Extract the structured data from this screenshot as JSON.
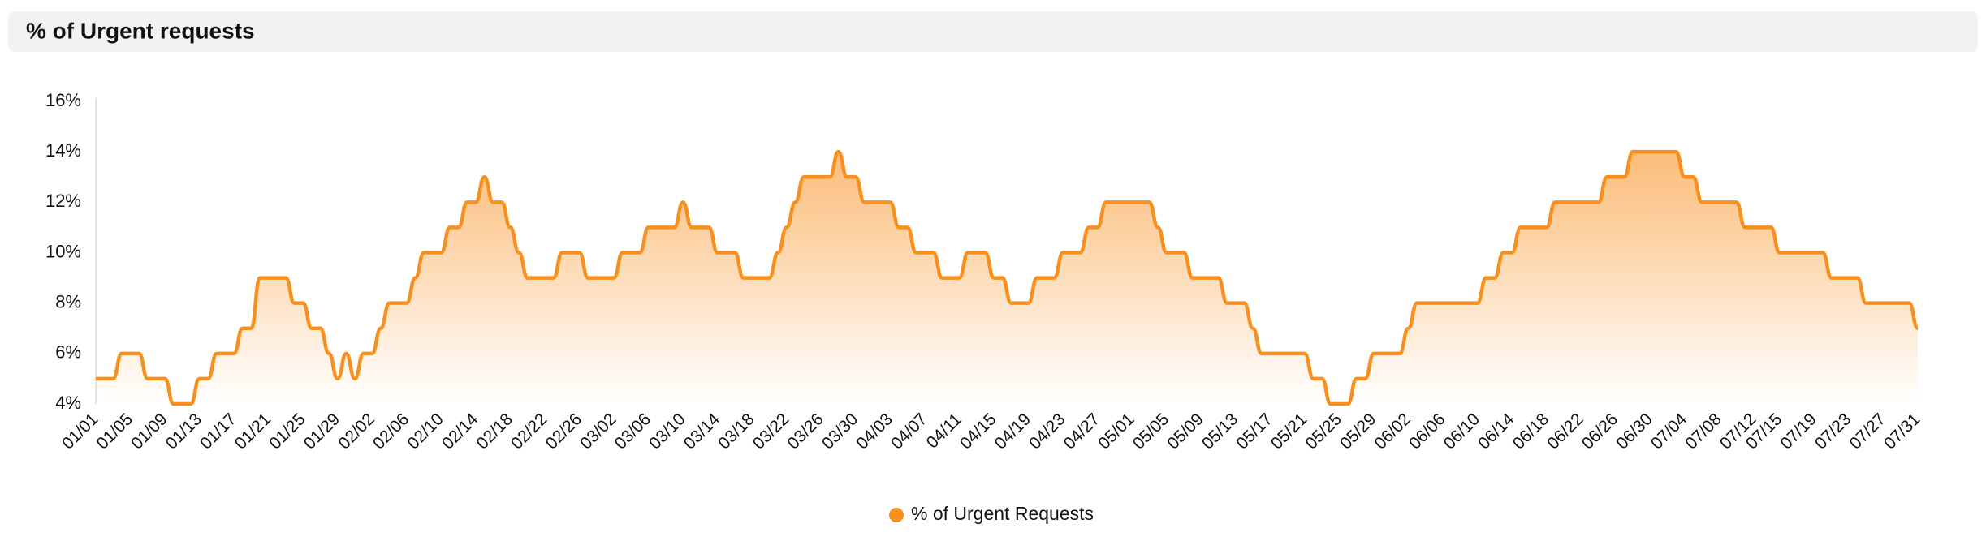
{
  "chart_data": {
    "type": "line",
    "title": "% of Urgent requests",
    "categories": [
      "01/01",
      null,
      null,
      null,
      "01/05",
      null,
      null,
      null,
      "01/09",
      null,
      null,
      null,
      "01/13",
      null,
      null,
      null,
      "01/17",
      null,
      null,
      null,
      "01/21",
      null,
      null,
      null,
      "01/25",
      null,
      null,
      null,
      "01/29",
      null,
      null,
      null,
      "02/02",
      null,
      null,
      null,
      "02/06",
      null,
      null,
      null,
      "02/10",
      null,
      null,
      null,
      "02/14",
      null,
      null,
      null,
      "02/18",
      null,
      null,
      null,
      "02/22",
      null,
      null,
      null,
      "02/26",
      null,
      null,
      null,
      "03/02",
      null,
      null,
      null,
      "03/06",
      null,
      null,
      null,
      "03/10",
      null,
      null,
      null,
      "03/14",
      null,
      null,
      null,
      "03/18",
      null,
      null,
      null,
      "03/22",
      null,
      null,
      null,
      "03/26",
      null,
      null,
      null,
      "03/30",
      null,
      null,
      null,
      "04/03",
      null,
      null,
      null,
      "04/07",
      null,
      null,
      null,
      "04/11",
      null,
      null,
      null,
      "04/15",
      null,
      null,
      null,
      "04/19",
      null,
      null,
      null,
      "04/23",
      null,
      null,
      null,
      "04/27",
      null,
      null,
      null,
      "05/01",
      null,
      null,
      null,
      "05/05",
      null,
      null,
      null,
      "05/09",
      null,
      null,
      null,
      "05/13",
      null,
      null,
      null,
      "05/17",
      null,
      null,
      null,
      "05/21",
      null,
      null,
      null,
      "05/25",
      null,
      null,
      null,
      "05/29",
      null,
      null,
      null,
      "06/02",
      null,
      null,
      null,
      "06/06",
      null,
      null,
      null,
      "06/10",
      null,
      null,
      null,
      "06/14",
      null,
      null,
      null,
      "06/18",
      null,
      null,
      null,
      "06/22",
      null,
      null,
      null,
      "06/26",
      null,
      null,
      null,
      "06/30",
      null,
      null,
      null,
      "07/04",
      null,
      null,
      null,
      "07/08",
      null,
      null,
      null,
      "07/12",
      null,
      null,
      "07/15",
      null,
      null,
      null,
      "07/19",
      null,
      null,
      null,
      "07/23",
      null,
      null,
      null,
      "07/27",
      null,
      null,
      null,
      "07/31"
    ],
    "series": [
      {
        "name": "% of Urgent Requests",
        "color": "#f7901e",
        "values": [
          5,
          5,
          5,
          6,
          6,
          6,
          5,
          5,
          5,
          4,
          4,
          4,
          5,
          5,
          6,
          6,
          6,
          7,
          7,
          9,
          9,
          9,
          9,
          8,
          8,
          7,
          7,
          6,
          5,
          6,
          5,
          6,
          6,
          7,
          8,
          8,
          8,
          9,
          10,
          10,
          10,
          11,
          11,
          12,
          12,
          13,
          12,
          12,
          11,
          10,
          9,
          9,
          9,
          9,
          10,
          10,
          10,
          9,
          9,
          9,
          9,
          10,
          10,
          10,
          11,
          11,
          11,
          11,
          12,
          11,
          11,
          11,
          10,
          10,
          10,
          9,
          9,
          9,
          9,
          10,
          11,
          12,
          13,
          13,
          13,
          13,
          14,
          13,
          13,
          12,
          12,
          12,
          12,
          11,
          11,
          10,
          10,
          10,
          9,
          9,
          9,
          10,
          10,
          10,
          9,
          9,
          8,
          8,
          8,
          9,
          9,
          9,
          10,
          10,
          10,
          11,
          11,
          12,
          12,
          12,
          12,
          12,
          12,
          11,
          10,
          10,
          10,
          9,
          9,
          9,
          9,
          8,
          8,
          8,
          7,
          6,
          6,
          6,
          6,
          6,
          6,
          5,
          5,
          4,
          4,
          4,
          5,
          5,
          6,
          6,
          6,
          6,
          7,
          8,
          8,
          8,
          8,
          8,
          8,
          8,
          8,
          9,
          9,
          10,
          10,
          11,
          11,
          11,
          11,
          12,
          12,
          12,
          12,
          12,
          12,
          13,
          13,
          13,
          14,
          14,
          14,
          14,
          14,
          14,
          13,
          13,
          12,
          12,
          12,
          12,
          12,
          11,
          11,
          11,
          11,
          10,
          10,
          10,
          10,
          10,
          10,
          9,
          9,
          9,
          9,
          8,
          8,
          8,
          8,
          8,
          8,
          7
        ]
      }
    ],
    "ylim": [
      4,
      16
    ],
    "yticks": [
      {
        "value": 4,
        "label": "4%"
      },
      {
        "value": 6,
        "label": "6%"
      },
      {
        "value": 8,
        "label": "8%"
      },
      {
        "value": 10,
        "label": "10%"
      },
      {
        "value": 12,
        "label": "12%"
      },
      {
        "value": 14,
        "label": "14%"
      },
      {
        "value": 16,
        "label": "16%"
      }
    ],
    "grid": false,
    "legend": "bottom"
  }
}
